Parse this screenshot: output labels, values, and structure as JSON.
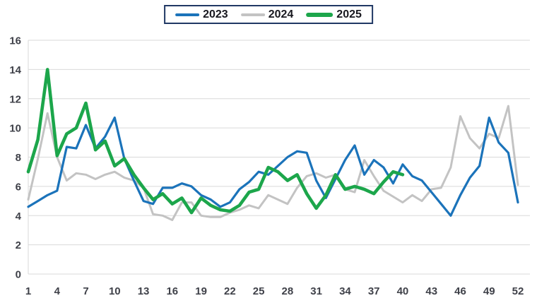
{
  "chart_data": {
    "type": "line",
    "title": "",
    "x_unit": "week",
    "x_start": 1,
    "x_end": 52,
    "x_ticks": [
      1,
      4,
      7,
      10,
      13,
      16,
      19,
      22,
      25,
      28,
      31,
      34,
      37,
      40,
      43,
      46,
      49,
      52
    ],
    "y_ticks": [
      0,
      2,
      4,
      6,
      8,
      10,
      12,
      14,
      16
    ],
    "ylim": [
      0,
      16
    ],
    "grid": "horizontal",
    "legend_position": "top-center",
    "legend_border_color": "#203864",
    "legend_text_color": "#18181f",
    "grid_color": "#d9d9d9",
    "axis_label_color": "#3f4149",
    "draw_order": [
      "2024",
      "2023",
      "2025"
    ],
    "series": [
      {
        "name": "2023",
        "color": "#1b73ba",
        "width": 3.2,
        "values": [
          4.6,
          5.0,
          5.4,
          5.7,
          8.7,
          8.6,
          10.2,
          8.6,
          9.4,
          10.7,
          7.9,
          6.4,
          5.0,
          4.8,
          5.9,
          5.9,
          6.2,
          6.0,
          5.4,
          5.1,
          4.6,
          4.9,
          5.8,
          6.3,
          7.0,
          6.8,
          7.4,
          8.0,
          8.4,
          8.3,
          6.4,
          5.2,
          6.5,
          7.8,
          8.8,
          6.8,
          7.8,
          7.3,
          6.2,
          7.5,
          6.7,
          6.4,
          5.6,
          4.8,
          4.0,
          5.4,
          6.6,
          7.4,
          10.7,
          9.0,
          8.3,
          4.9
        ]
      },
      {
        "name": "2024",
        "color": "#c3c3c3",
        "width": 3,
        "values": [
          5.1,
          7.9,
          11.0,
          8.0,
          6.4,
          6.9,
          6.8,
          6.5,
          6.8,
          7.0,
          6.6,
          6.4,
          5.9,
          4.1,
          4.0,
          3.7,
          4.9,
          4.9,
          4.0,
          3.9,
          3.9,
          4.2,
          4.4,
          4.7,
          4.5,
          5.4,
          5.1,
          4.8,
          5.9,
          6.7,
          6.9,
          6.6,
          6.8,
          5.8,
          5.6,
          7.8,
          6.7,
          5.7,
          5.3,
          4.9,
          5.4,
          5.0,
          5.8,
          5.9,
          7.3,
          10.8,
          9.3,
          8.6,
          9.6,
          9.3,
          11.5,
          6.1
        ]
      },
      {
        "name": "2025",
        "color": "#1ca64b",
        "width": 4.6,
        "values": [
          7.0,
          9.2,
          14.0,
          8.1,
          9.6,
          10.0,
          11.7,
          8.5,
          9.1,
          7.4,
          7.9,
          6.8,
          5.9,
          5.1,
          5.5,
          4.8,
          5.2,
          4.2,
          5.2,
          4.7,
          4.4,
          4.3,
          4.7,
          5.6,
          5.8,
          7.3,
          7.0,
          6.4,
          6.8,
          5.5,
          4.5,
          5.4,
          6.8,
          5.8,
          6.0,
          5.8,
          5.5,
          6.3,
          7.0,
          6.8
        ]
      }
    ]
  }
}
